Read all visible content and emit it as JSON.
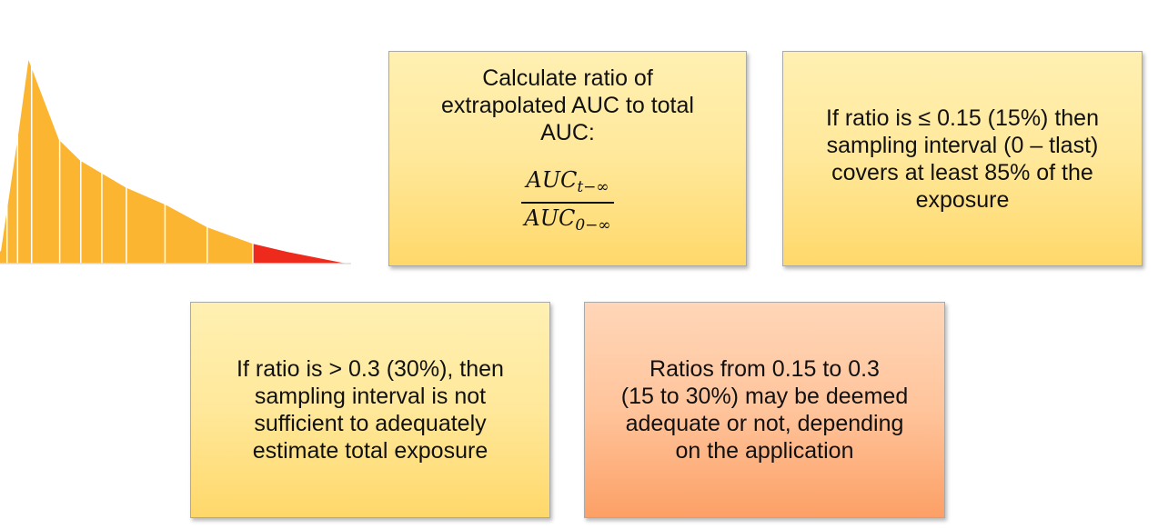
{
  "colors": {
    "curve_fill": "#fbb531",
    "curve_extrapolated": "#ee2a1d",
    "box_yellow": "#ffe89a",
    "box_orange": "#ffc49b"
  },
  "curve": {
    "profile": [
      [
        0,
        0.06
      ],
      [
        0.05,
        0.63
      ],
      [
        0.08,
        1.0
      ],
      [
        0.17,
        0.6
      ],
      [
        0.23,
        0.5
      ],
      [
        0.29,
        0.44
      ],
      [
        0.36,
        0.37
      ],
      [
        0.47,
        0.29
      ],
      [
        0.59,
        0.18
      ],
      [
        0.72,
        0.1
      ],
      [
        0.82,
        0.06
      ],
      [
        1.0,
        0.0
      ]
    ],
    "divisions": [
      0.02,
      0.05,
      0.09,
      0.17,
      0.23,
      0.29,
      0.36,
      0.47,
      0.59,
      0.72
    ],
    "extrapolated_from": 0.72
  },
  "box_calc": {
    "text_lines": [
      "Calculate ratio of",
      "extrapolated AUC to total",
      "AUC:"
    ],
    "numerator": "AUC",
    "numerator_sub": "t−∞",
    "denominator": "AUC",
    "denominator_sub": "0−∞"
  },
  "box_ok": {
    "text_lines": [
      "If ratio is ≤ 0.15 (15%) then",
      "sampling interval (0 – tlast)",
      "covers at least 85% of the",
      "exposure"
    ]
  },
  "box_bad": {
    "text_lines": [
      "If ratio is > 0.3 (30%), then",
      "sampling interval is not",
      "sufficient to adequately",
      "estimate total exposure"
    ]
  },
  "box_mid": {
    "text_lines": [
      "Ratios from 0.15 to 0.3",
      "(15 to 30%) may be deemed",
      "adequate or not, depending",
      "on the application"
    ]
  }
}
